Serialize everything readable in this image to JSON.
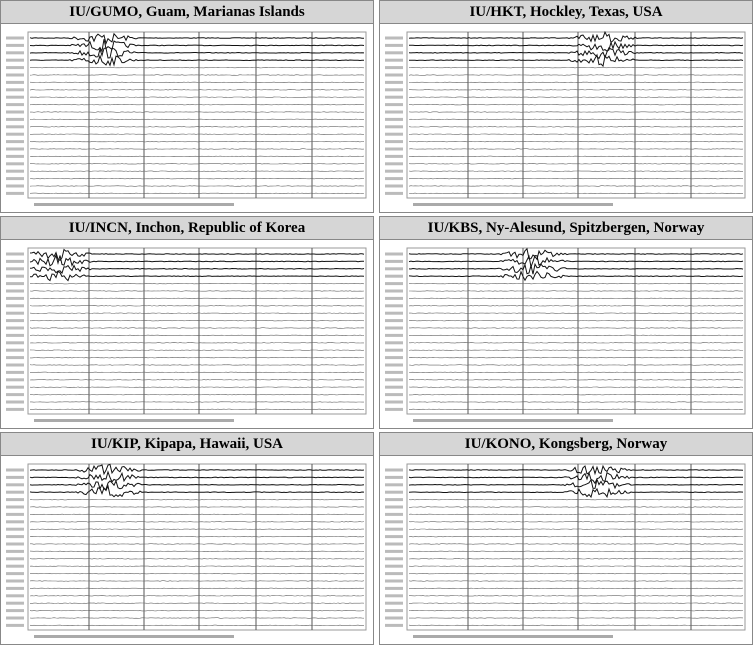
{
  "panels": [
    {
      "title": "IU/GUMO, Guam, Marianas Islands"
    },
    {
      "title": "IU/HKT, Hockley, Texas, USA"
    },
    {
      "title": "IU/INCN, Inchon, Republic of Korea"
    },
    {
      "title": "IU/KBS, Ny-Alesund, Spitzbergen, Norway"
    },
    {
      "title": "IU/KIP, Kipapa, Hawaii, USA"
    },
    {
      "title": "IU/KONO, Kongsberg, Norway"
    }
  ]
}
